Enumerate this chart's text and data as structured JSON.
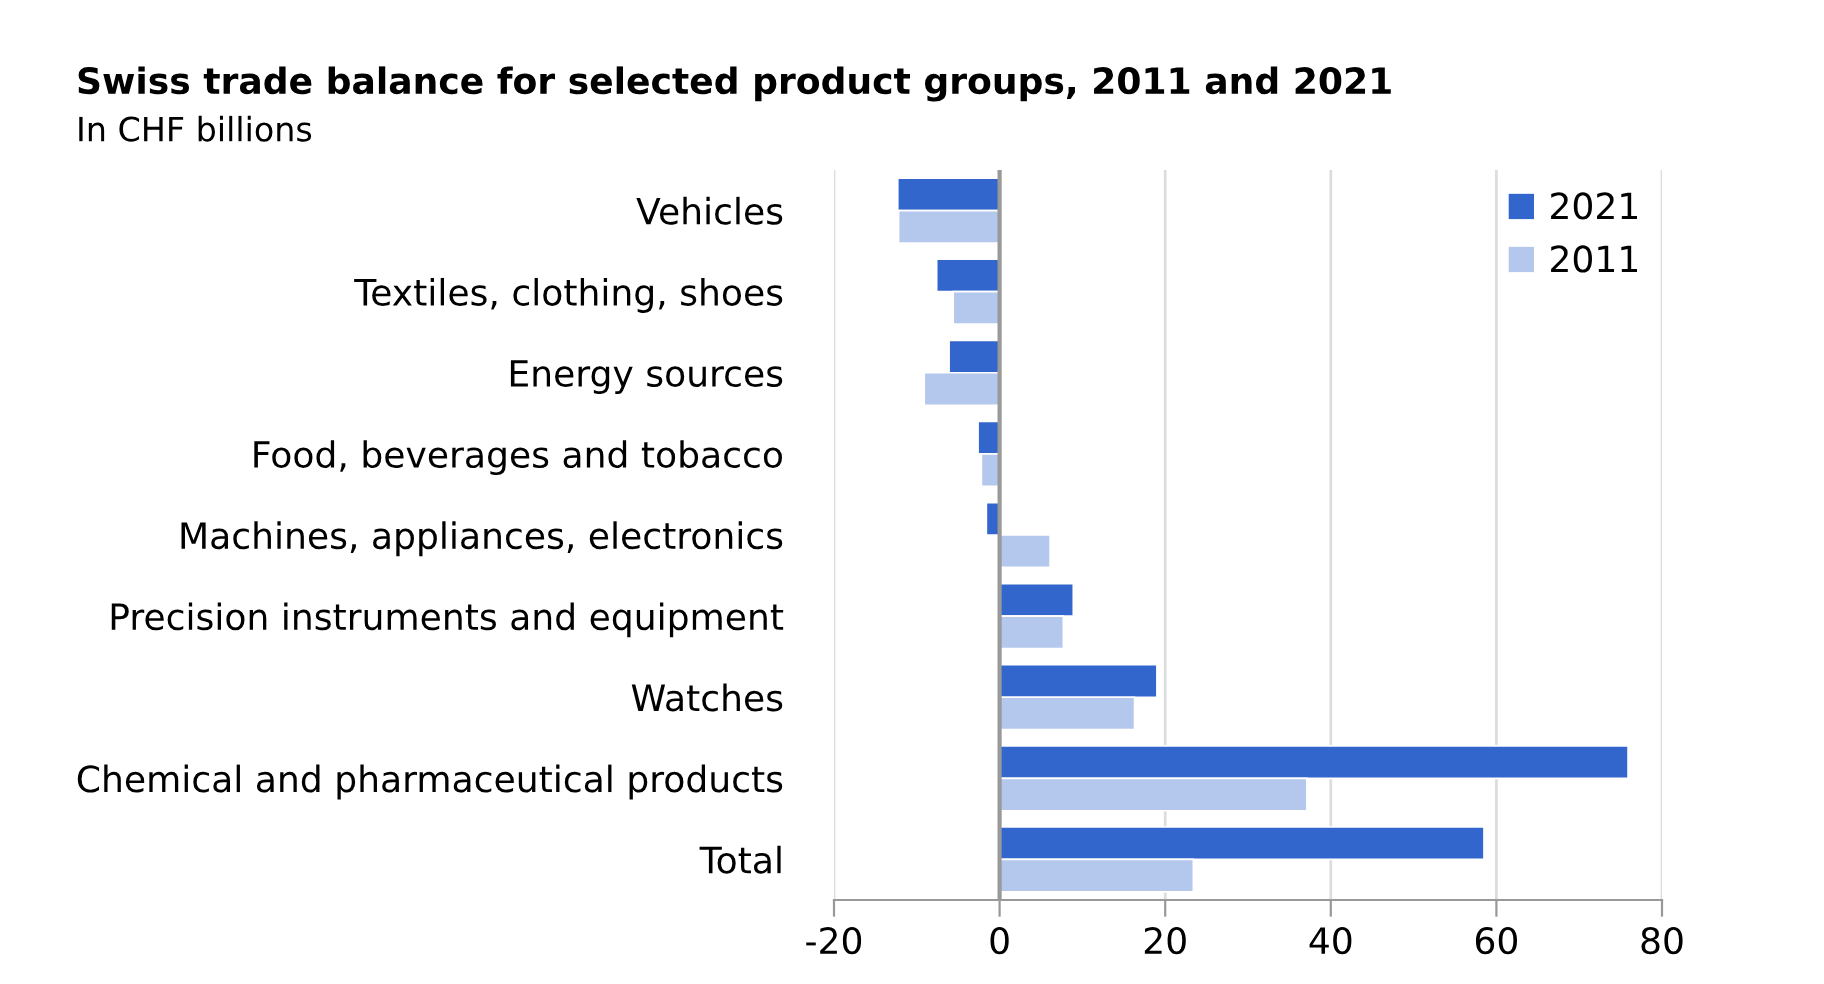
{
  "chart_data": {
    "type": "bar",
    "orientation": "horizontal",
    "title": "Swiss trade balance for selected product groups, 2011 and 2021",
    "subtitle": "In CHF billions",
    "categories": [
      "Vehicles",
      "Textiles, clothing, shoes",
      "Energy sources",
      "Food, beverages and tobacco",
      "Machines, appliances, electronics",
      "Precision instruments and equipment",
      "Watches",
      "Chemical and pharmaceutical products",
      "Total"
    ],
    "series": [
      {
        "name": "2021",
        "color": "#3366cc",
        "values": [
          -12.3,
          -7.6,
          -6.1,
          -2.6,
          -1.6,
          8.9,
          19.0,
          75.9,
          58.5
        ]
      },
      {
        "name": "2011",
        "color": "#b4c7ec",
        "values": [
          -12.2,
          -5.6,
          -9.1,
          -2.2,
          6.1,
          7.7,
          16.3,
          37.1,
          23.4
        ]
      }
    ],
    "xlim": [
      -20,
      80
    ],
    "xticks": [
      -20,
      0,
      20,
      40,
      60,
      80
    ],
    "grid": "x",
    "legend": "top right"
  }
}
